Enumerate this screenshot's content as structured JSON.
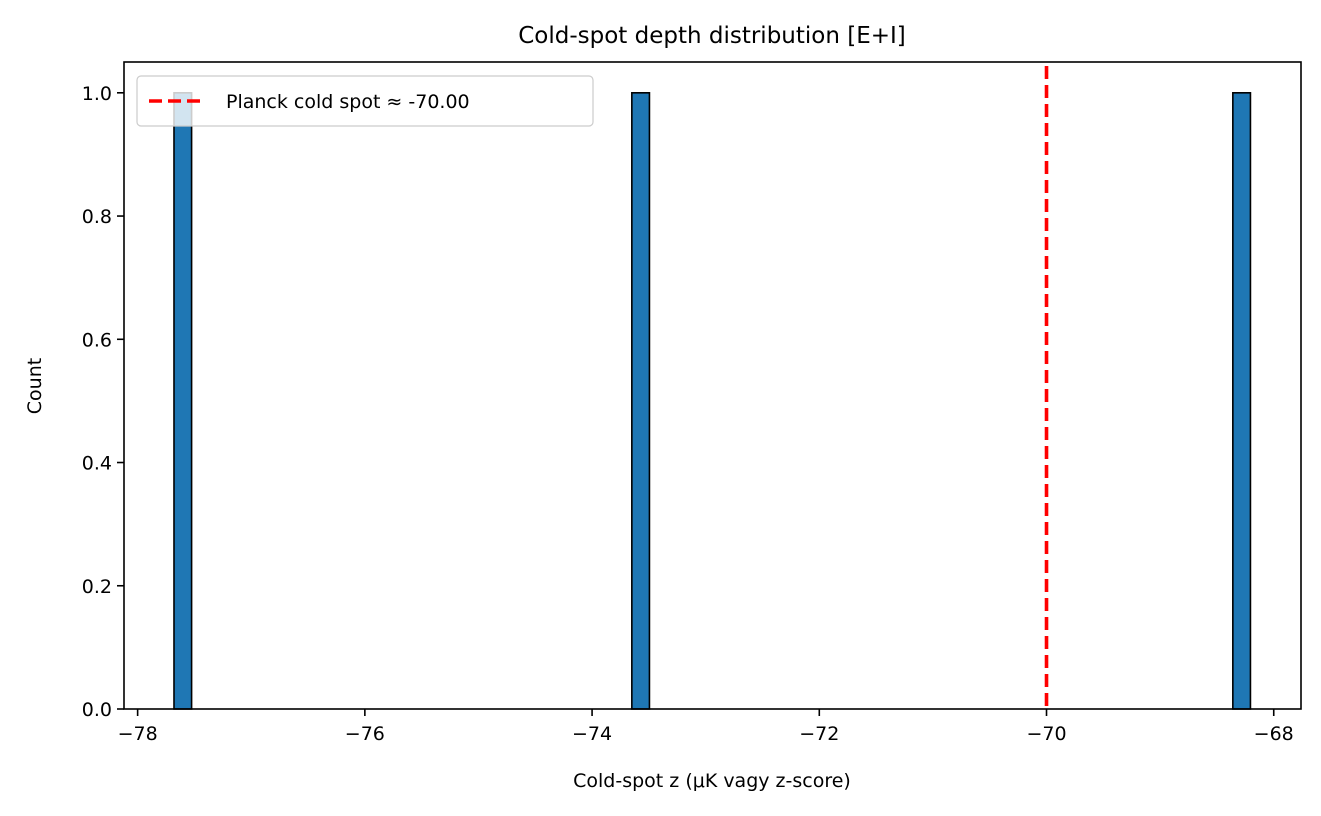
{
  "chart_data": {
    "type": "bar",
    "title": "Cold-spot depth distribution [E+I]",
    "xlabel": "Cold-spot z (μK vagy z-score)",
    "ylabel": "Count",
    "xlim": [
      -78.12,
      -67.76
    ],
    "ylim": [
      0,
      1.05
    ],
    "bar_color": "#1f77b4",
    "bar_edge_color": "#000000",
    "bin_width": 0.155,
    "bars": [
      {
        "x_left": -77.68,
        "count": 1
      },
      {
        "x_left": -73.65,
        "count": 1
      },
      {
        "x_left": -68.36,
        "count": 1
      }
    ],
    "x_ticks": [
      {
        "value": -78,
        "label": "−78"
      },
      {
        "value": -76,
        "label": "−76"
      },
      {
        "value": -74,
        "label": "−74"
      },
      {
        "value": -72,
        "label": "−72"
      },
      {
        "value": -70,
        "label": "−70"
      },
      {
        "value": -68,
        "label": "−68"
      }
    ],
    "y_ticks": [
      {
        "value": 0.0,
        "label": "0.0"
      },
      {
        "value": 0.2,
        "label": "0.2"
      },
      {
        "value": 0.4,
        "label": "0.4"
      },
      {
        "value": 0.6,
        "label": "0.6"
      },
      {
        "value": 0.8,
        "label": "0.8"
      },
      {
        "value": 1.0,
        "label": "1.0"
      }
    ],
    "reference_line": {
      "x": -70.0,
      "label": "Planck cold spot ≈ -70.00",
      "color": "#ff0000",
      "style": "dashed"
    },
    "legend": {
      "position": "upper-left"
    },
    "grid": false
  }
}
